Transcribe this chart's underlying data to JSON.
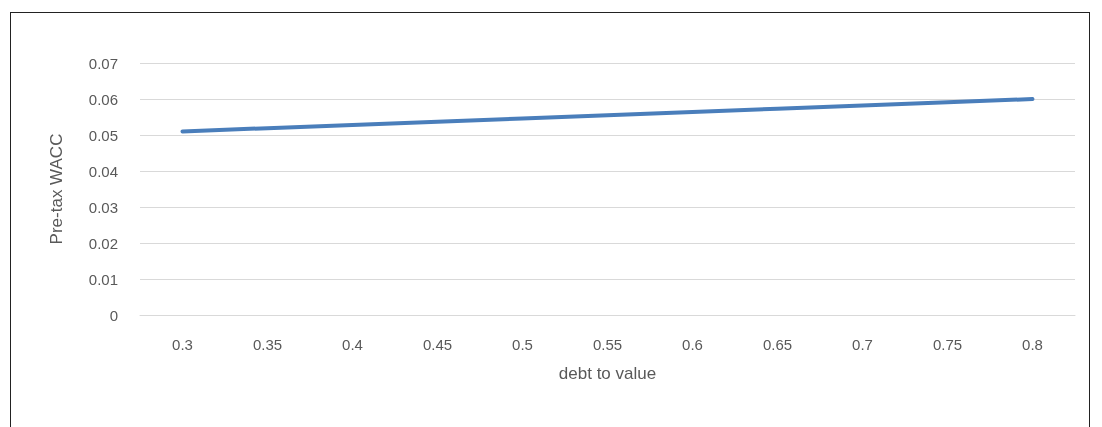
{
  "chart_data": {
    "type": "line",
    "xlabel": "debt to value",
    "ylabel": "Pre-tax WACC",
    "categories": [
      "0.3",
      "0.35",
      "0.4",
      "0.45",
      "0.5",
      "0.55",
      "0.6",
      "0.65",
      "0.7",
      "0.75",
      "0.8"
    ],
    "series": [
      {
        "color": "#4a7ebb",
        "values": [
          0.051,
          0.0519,
          0.0528,
          0.0537,
          0.0546,
          0.0555,
          0.0564,
          0.0573,
          0.0582,
          0.0591,
          0.06
        ]
      }
    ],
    "ylim": [
      0,
      0.07
    ],
    "yticks": [
      0,
      0.01,
      0.02,
      0.03,
      0.04,
      0.05,
      0.06,
      0.07
    ],
    "grid": "y",
    "marker": "none",
    "line_style": "solid"
  }
}
